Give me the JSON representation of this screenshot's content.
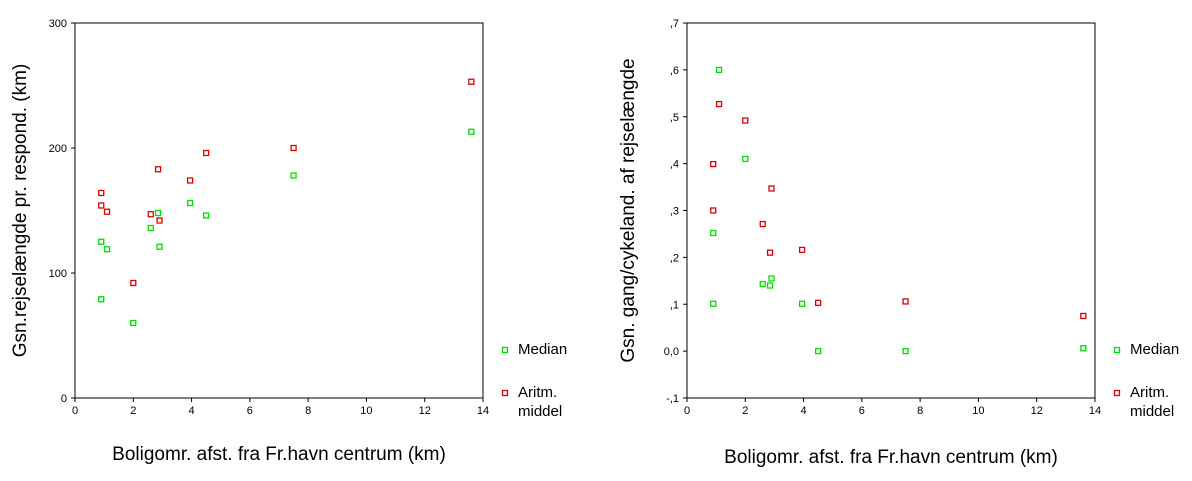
{
  "chart_data": [
    {
      "type": "scatter",
      "xlabel": "Boligomr. afst. fra Fr.havn centrum (km)",
      "ylabel": "Gsn.rejselængde pr. respond. (km)",
      "xlim": [
        0,
        14
      ],
      "ylim": [
        0,
        300
      ],
      "x_ticks": [
        "0",
        "2",
        "4",
        "6",
        "8",
        "10",
        "12",
        "14"
      ],
      "y_ticks": [
        "0",
        "100",
        "200",
        "300"
      ],
      "grid": false,
      "legend_position": "bottom-right outside",
      "series": [
        {
          "name": "Median",
          "color": "#00dd00",
          "x": [
            0.9,
            0.9,
            1.1,
            2.0,
            2.6,
            2.85,
            2.9,
            3.95,
            4.5,
            7.5,
            13.6
          ],
          "y": [
            125,
            79,
            119,
            60,
            136,
            148,
            121,
            156,
            146,
            178,
            213
          ]
        },
        {
          "name": "Aritm. middel",
          "name_lines": [
            "Aritm.",
            "middel"
          ],
          "color": "#dd0000",
          "x": [
            0.9,
            0.9,
            1.1,
            2.0,
            2.6,
            2.85,
            2.9,
            3.95,
            4.5,
            7.5,
            13.6
          ],
          "y": [
            164,
            154,
            149,
            92,
            147,
            183,
            142,
            174,
            196,
            200,
            253
          ]
        }
      ]
    },
    {
      "type": "scatter",
      "xlabel": "Boligomr. afst. fra Fr.havn centrum (km)",
      "ylabel": "Gsn. gang/cykeland. af rejselængde",
      "xlim": [
        0,
        14
      ],
      "ylim": [
        -0.1,
        0.7
      ],
      "x_ticks": [
        "0",
        "2",
        "4",
        "6",
        "8",
        "10",
        "12",
        "14"
      ],
      "y_ticks": [
        "-,1",
        "0,0",
        ",1",
        ",2",
        ",3",
        ",4",
        ",5",
        ",6",
        ",7"
      ],
      "grid": false,
      "legend_position": "bottom-right outside",
      "series": [
        {
          "name": "Median",
          "color": "#00dd00",
          "x": [
            0.9,
            0.9,
            1.1,
            2.0,
            2.6,
            2.85,
            2.9,
            3.95,
            4.5,
            7.5,
            13.6
          ],
          "y": [
            0.252,
            0.101,
            0.6,
            0.41,
            0.143,
            0.14,
            0.155,
            0.101,
            0.0,
            0.0,
            0.006
          ]
        },
        {
          "name": "Aritm. middel",
          "name_lines": [
            "Aritm.",
            "middel"
          ],
          "color": "#dd0000",
          "x": [
            0.9,
            0.9,
            1.1,
            2.0,
            2.6,
            2.85,
            2.9,
            3.95,
            4.5,
            7.5,
            13.6
          ],
          "y": [
            0.399,
            0.3,
            0.527,
            0.492,
            0.271,
            0.21,
            0.347,
            0.216,
            0.103,
            0.106,
            0.075
          ]
        }
      ]
    }
  ]
}
